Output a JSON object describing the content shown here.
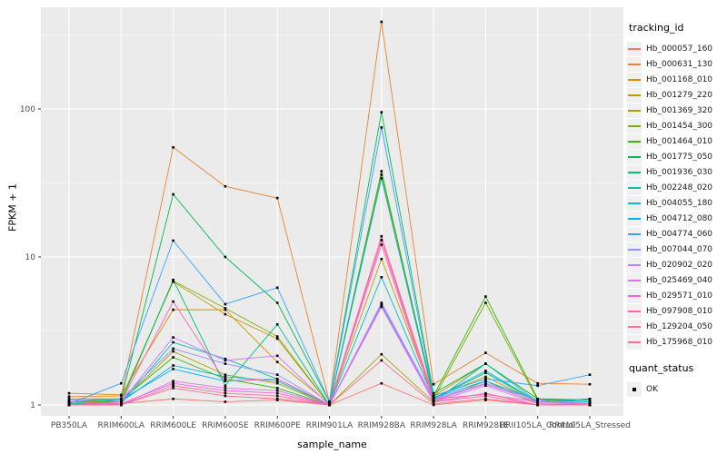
{
  "axes": {
    "x_label": "sample_name",
    "y_label": "FPKM + 1"
  },
  "legend": {
    "tracking_title": "tracking_id",
    "quant_title": "quant_status",
    "quant_items": [
      {
        "label": "OK"
      }
    ]
  },
  "colors": {
    "panel_bg": "#ebebeb",
    "grid_major": "#ffffff",
    "grid_minor": "#ffffff",
    "tick_text": "#4d4d4d",
    "point": "#000000"
  },
  "chart_data": {
    "type": "line",
    "title": "",
    "xlabel": "sample_name",
    "ylabel": "FPKM + 1",
    "y_scale": "log10",
    "ylim": [
      0.93,
      480
    ],
    "grid": true,
    "legend_position": "right",
    "point_shape": "filled-black-square",
    "y_ticks": [
      {
        "label": "1",
        "value": 1
      },
      {
        "label": "10",
        "value": 10
      },
      {
        "label": "100",
        "value": 100
      }
    ],
    "y_minor_ticks": [
      3.162,
      31.62,
      316.2
    ],
    "categories": [
      "PB350LA",
      "RRIM600LA",
      "RRIM600LE",
      "RRIM600SE",
      "RRIM600PE",
      "RRIM901LA",
      "RRIM928BA",
      "RRIM928LA",
      "RRIM928LE",
      "RRII105LA_Control",
      "RRII105LA_Stressed"
    ],
    "series": [
      {
        "name": "Hb_000057_160",
        "color": "#F8766D",
        "values": [
          1.05,
          1.02,
          1.1,
          1.05,
          1.08,
          1.0,
          1.4,
          1.0,
          1.08,
          1.0,
          1.0
        ]
      },
      {
        "name": "Hb_000631_130",
        "color": "#EA8331",
        "values": [
          1.14,
          1.15,
          55,
          30,
          25,
          1.05,
          388,
          1.38,
          2.25,
          1.4,
          1.38
        ]
      },
      {
        "name": "Hb_001168_010",
        "color": "#D89000",
        "values": [
          1.2,
          1.17,
          4.4,
          4.4,
          1.95,
          1.02,
          13.0,
          1.15,
          1.9,
          1.1,
          1.05
        ]
      },
      {
        "name": "Hb_001279_220",
        "color": "#C09B00",
        "values": [
          1.1,
          1.1,
          6.8,
          4.1,
          2.8,
          1.0,
          9.7,
          1.12,
          1.55,
          1.05,
          1.02
        ]
      },
      {
        "name": "Hb_001369_320",
        "color": "#A3A500",
        "values": [
          1.05,
          1.05,
          2.3,
          1.6,
          1.4,
          1.0,
          2.2,
          1.05,
          1.45,
          1.02,
          1.0
        ]
      },
      {
        "name": "Hb_001454_300",
        "color": "#7CAE00",
        "values": [
          1.02,
          1.05,
          6.9,
          4.5,
          2.9,
          1.0,
          36,
          1.1,
          4.9,
          1.08,
          1.02
        ]
      },
      {
        "name": "Hb_001464_010",
        "color": "#39B600",
        "values": [
          1.0,
          1.08,
          2.1,
          1.5,
          1.3,
          1.0,
          38,
          1.15,
          5.4,
          1.1,
          1.05
        ]
      },
      {
        "name": "Hb_001775_050",
        "color": "#00BB4E",
        "values": [
          1.05,
          1.1,
          26.5,
          10.0,
          4.9,
          1.05,
          95,
          1.2,
          1.9,
          1.1,
          1.08
        ]
      },
      {
        "name": "Hb_001936_030",
        "color": "#00BF7D",
        "values": [
          1.02,
          1.05,
          7.0,
          1.35,
          3.5,
          1.0,
          4.8,
          1.1,
          1.65,
          1.05,
          1.1
        ]
      },
      {
        "name": "Hb_002248_020",
        "color": "#00C0AF",
        "values": [
          1.0,
          1.02,
          2.65,
          2.05,
          1.5,
          1.0,
          4.7,
          1.05,
          1.9,
          1.05,
          1.1
        ]
      },
      {
        "name": "Hb_004055_180",
        "color": "#00BCD8",
        "values": [
          1.0,
          1.05,
          1.85,
          1.55,
          1.45,
          1.0,
          7.3,
          1.1,
          1.7,
          1.05,
          1.02
        ]
      },
      {
        "name": "Hb_004712_080",
        "color": "#00B0F6",
        "values": [
          1.05,
          1.08,
          1.75,
          1.45,
          1.5,
          1.0,
          34,
          1.12,
          1.45,
          1.08,
          1.05
        ]
      },
      {
        "name": "Hb_004774_060",
        "color": "#35A2FF",
        "values": [
          1.02,
          1.4,
          12.9,
          4.8,
          6.2,
          1.05,
          75,
          1.15,
          1.5,
          1.35,
          1.6
        ]
      },
      {
        "name": "Hb_007044_070",
        "color": "#9590FF",
        "values": [
          1.08,
          1.1,
          2.4,
          1.9,
          1.6,
          1.0,
          4.9,
          1.1,
          1.4,
          1.08,
          1.02
        ]
      },
      {
        "name": "Hb_020902_020",
        "color": "#C77CFF",
        "values": [
          1.0,
          1.05,
          2.86,
          2.0,
          2.15,
          1.0,
          4.8,
          1.08,
          1.38,
          1.05,
          1.0
        ]
      },
      {
        "name": "Hb_025469_040",
        "color": "#E76BF3",
        "values": [
          1.05,
          1.0,
          1.45,
          1.3,
          1.25,
          1.0,
          4.6,
          1.05,
          1.35,
          1.02,
          1.0
        ]
      },
      {
        "name": "Hb_029571_010",
        "color": "#FA62DB",
        "values": [
          1.0,
          1.02,
          1.4,
          1.25,
          1.2,
          1.0,
          12.1,
          1.05,
          1.2,
          1.0,
          1.0
        ]
      },
      {
        "name": "Hb_097908_010",
        "color": "#FF62BC",
        "values": [
          1.0,
          1.05,
          5.0,
          1.45,
          1.5,
          1.0,
          13.8,
          1.1,
          1.18,
          1.05,
          1.02
        ]
      },
      {
        "name": "Hb_129204_050",
        "color": "#FF6A9A",
        "values": [
          1.0,
          1.0,
          1.35,
          1.2,
          1.15,
          1.0,
          13.0,
          1.05,
          1.15,
          1.0,
          1.0
        ]
      },
      {
        "name": "Hb_175968_010",
        "color": "#FF6C92",
        "values": [
          1.0,
          1.0,
          1.3,
          1.15,
          1.1,
          1.0,
          2.0,
          1.02,
          1.1,
          1.0,
          1.0
        ]
      }
    ]
  }
}
